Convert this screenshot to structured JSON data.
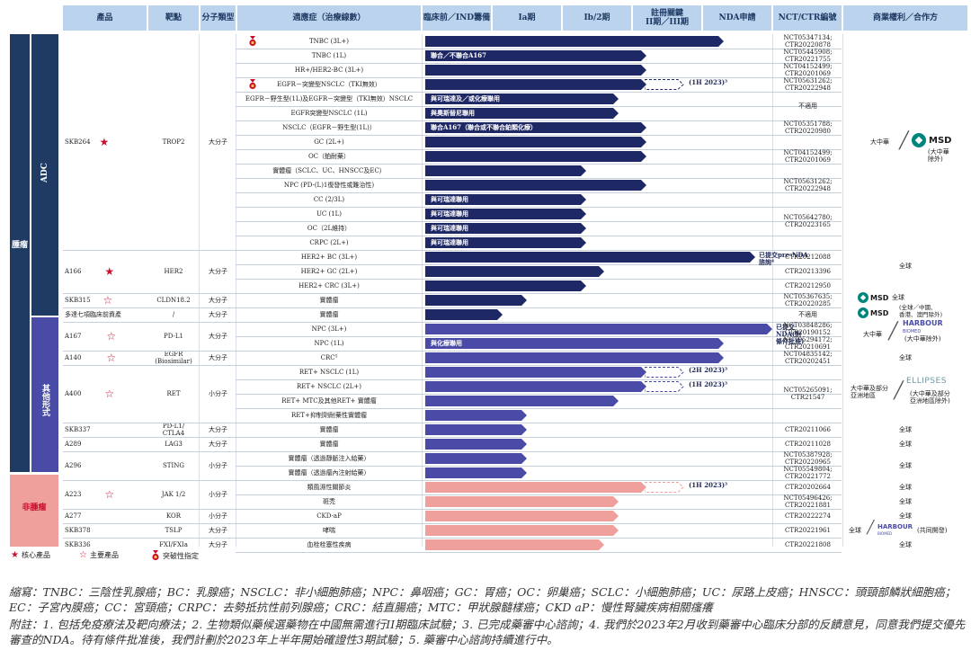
{
  "headers": {
    "product": "產品",
    "target": "靶點",
    "molecule": "分子類型",
    "indication": "適應症（治療線數）",
    "preclin": "臨床前／IND籌備",
    "phase1a": "Ia期",
    "phase1b2": "Ib/2期",
    "pivotal": "註冊關鍵\nII期／III期",
    "nda": "NDA申請",
    "nct": "NCT/CTR編號",
    "commercial": "商業權利／合作方"
  },
  "categories": {
    "oncology": "腫瘤",
    "adc": "ADC",
    "others": "其他形式",
    "non_oncology": "非腫瘤"
  },
  "products": [
    {
      "name": "SKB264",
      "star": "filled",
      "target": "TROP2",
      "molecule": "大分子"
    },
    {
      "name": "A166",
      "star": "filled",
      "target": "HER2",
      "molecule": "大分子"
    },
    {
      "name": "SKB315",
      "star": "outline",
      "target": "CLDN18.2",
      "molecule": "大分子"
    },
    {
      "name": "多達七項臨床前資產",
      "star": "",
      "target": "/",
      "molecule": "大分子"
    },
    {
      "name": "A167",
      "star": "outline",
      "target": "PD-L1",
      "molecule": "大分子"
    },
    {
      "name": "A140",
      "star": "outline",
      "target": "EGFR\n(Biosimilar)",
      "molecule": "大分子"
    },
    {
      "name": "A400",
      "star": "outline",
      "target": "RET",
      "molecule": "小分子"
    },
    {
      "name": "SKB337",
      "star": "",
      "target": "PD-L1/\nCTLA4",
      "molecule": "大分子"
    },
    {
      "name": "A289",
      "star": "",
      "target": "LAG3",
      "molecule": "大分子"
    },
    {
      "name": "A296",
      "star": "",
      "target": "STING",
      "molecule": "小分子"
    },
    {
      "name": "A223",
      "star": "outline",
      "target": "JAK 1/2",
      "molecule": "小分子"
    },
    {
      "name": "A277",
      "star": "",
      "target": "KOR",
      "molecule": "小分子"
    },
    {
      "name": "SKB378",
      "star": "",
      "target": "TSLP",
      "molecule": "大分子"
    },
    {
      "name": "SKB336",
      "star": "",
      "target": "FXI/FXIa",
      "molecule": "大分子"
    }
  ],
  "rows": [
    {
      "indication": "TNBC (3L+)",
      "stage": 0.85,
      "color": "#1e2864",
      "medal": true,
      "label": "",
      "dash": 0,
      "note": ""
    },
    {
      "indication": "TNBC (1L)",
      "stage": 0.63,
      "color": "#1e2864",
      "medal": false,
      "label": "聯合／不聯合A167",
      "dash": 0,
      "note": ""
    },
    {
      "indication": "HR+/HER2-BC (3L+)",
      "stage": 0.63,
      "color": "#1e2864",
      "medal": false,
      "label": "",
      "dash": 0,
      "note": ""
    },
    {
      "indication": "EGFR－突變型NSCLC（TKI無效）",
      "stage": 0.63,
      "color": "#1e2864",
      "medal": true,
      "label": "",
      "dash": 0.73,
      "note": "(1H 2023)³"
    },
    {
      "indication": "EGFR－野生型(1L)及EGFR－突變型（TKI無效）NSCLC",
      "stage": 0.55,
      "color": "#1e2864",
      "medal": false,
      "label": "與可瑞達及／或化療聯用",
      "dash": 0,
      "note": ""
    },
    {
      "indication": "EGFR突變型NSCLC (1L)",
      "stage": 0.55,
      "color": "#1e2864",
      "medal": false,
      "label": "與奧斯替尼聯用",
      "dash": 0,
      "note": ""
    },
    {
      "indication": "NSCLC（EGFR－野生型(1L)）",
      "stage": 0.63,
      "color": "#1e2864",
      "medal": false,
      "label": "聯合A167（聯合或不聯合鉑類化療）",
      "dash": 0,
      "note": ""
    },
    {
      "indication": "GC (2L+)",
      "stage": 0.63,
      "color": "#1e2864",
      "medal": false,
      "label": "",
      "dash": 0,
      "note": ""
    },
    {
      "indication": "OC（鉑耐藥）",
      "stage": 0.63,
      "color": "#1e2864",
      "medal": false,
      "label": "",
      "dash": 0,
      "note": ""
    },
    {
      "indication": "實體瘤（SCLC、UC、HNSCC及EC）",
      "stage": 0.46,
      "color": "#1e2864",
      "medal": false,
      "label": "",
      "dash": 0,
      "note": ""
    },
    {
      "indication": "NPC (PD-(L)1復發性或難治性)",
      "stage": 0.63,
      "color": "#1e2864",
      "medal": false,
      "label": "",
      "dash": 0,
      "note": ""
    },
    {
      "indication": "CC (2/3L)",
      "stage": 0.46,
      "color": "#1e2864",
      "medal": false,
      "label": "與可瑞達聯用",
      "dash": 0,
      "note": ""
    },
    {
      "indication": "UC (1L)",
      "stage": 0.46,
      "color": "#1e2864",
      "medal": false,
      "label": "與可瑞達聯用",
      "dash": 0,
      "note": ""
    },
    {
      "indication": "OC（2L維持）",
      "stage": 0.46,
      "color": "#1e2864",
      "medal": false,
      "label": "與可瑞達聯用",
      "dash": 0,
      "note": ""
    },
    {
      "indication": "CRPC (2L+)",
      "stage": 0.46,
      "color": "#1e2864",
      "medal": false,
      "label": "與可瑞達聯用",
      "dash": 0,
      "note": ""
    },
    {
      "indication": "HER2+ BC (3L+)",
      "stage": 0.94,
      "color": "#1e2864",
      "medal": false,
      "label": "",
      "dash": 0,
      "note": "已提交pre-NDA\n諮詢⁴"
    },
    {
      "indication": "HER2+ GC (2L+)",
      "stage": 0.51,
      "color": "#1e2864",
      "medal": false,
      "label": "",
      "dash": 0,
      "note": ""
    },
    {
      "indication": "HER2+ CRC (3L+)",
      "stage": 0.46,
      "color": "#1e2864",
      "medal": false,
      "label": "",
      "dash": 0,
      "note": ""
    },
    {
      "indication": "實體瘤",
      "stage": 0.29,
      "color": "#1e2864",
      "medal": false,
      "label": "",
      "dash": 0,
      "note": ""
    },
    {
      "indication": "實體瘤",
      "stage": 0.22,
      "color": "#1e2864",
      "medal": false,
      "label": "",
      "dash": 0,
      "note": ""
    },
    {
      "indication": "NPC (3L+)",
      "stage": 0.99,
      "color": "#4a4ba6",
      "medal": false,
      "label": "",
      "dash": 0,
      "note": "已提交\nNDA(附\n條件批准)"
    },
    {
      "indication": "NPC (1L)",
      "stage": 0.85,
      "color": "#4a4ba6",
      "medal": false,
      "label": "與化療聯用",
      "dash": 0,
      "note": ""
    },
    {
      "indication": "CRC⁵",
      "stage": 0.85,
      "color": "#4a4ba6",
      "medal": false,
      "label": "",
      "dash": 0,
      "note": ""
    },
    {
      "indication": "RET+ NSCLC (1L)",
      "stage": 0.63,
      "color": "#4a4ba6",
      "medal": false,
      "label": "",
      "dash": 0.73,
      "note": "(2H 2023)³"
    },
    {
      "indication": "RET+ NSCLC (2L+)",
      "stage": 0.63,
      "color": "#4a4ba6",
      "medal": false,
      "label": "",
      "dash": 0.73,
      "note": "(1H 2023)³"
    },
    {
      "indication": "RET+ MTC及其他RET+ 實體瘤",
      "stage": 0.55,
      "color": "#4a4ba6",
      "medal": false,
      "label": "",
      "dash": 0,
      "note": ""
    },
    {
      "indication": "RET+抑制劑耐藥性實體瘤",
      "stage": 0.29,
      "color": "#4a4ba6",
      "medal": false,
      "label": "",
      "dash": 0,
      "note": ""
    },
    {
      "indication": "實體瘤",
      "stage": 0.29,
      "color": "#4a4ba6",
      "medal": false,
      "label": "",
      "dash": 0,
      "note": ""
    },
    {
      "indication": "實體瘤",
      "stage": 0.29,
      "color": "#4a4ba6",
      "medal": false,
      "label": "",
      "dash": 0,
      "note": ""
    },
    {
      "indication": "實體瘤（透過靜脈注入給藥）",
      "stage": 0.29,
      "color": "#4a4ba6",
      "medal": false,
      "label": "",
      "dash": 0,
      "note": ""
    },
    {
      "indication": "實體瘤（透過瘤內注射給藥）",
      "stage": 0.29,
      "color": "#4a4ba6",
      "medal": false,
      "label": "",
      "dash": 0,
      "note": ""
    },
    {
      "indication": "類風濕性關節炎",
      "stage": 0.63,
      "color": "#f0a09c",
      "medal": false,
      "label": "",
      "dash": 0.73,
      "note": "(1H 2023)³"
    },
    {
      "indication": "斑禿",
      "stage": 0.55,
      "color": "#f0a09c",
      "medal": false,
      "label": "",
      "dash": 0,
      "note": ""
    },
    {
      "indication": "CKD-aP",
      "stage": 0.55,
      "color": "#f0a09c",
      "medal": false,
      "label": "",
      "dash": 0,
      "note": ""
    },
    {
      "indication": "哮喘",
      "stage": 0.55,
      "color": "#f0a09c",
      "medal": false,
      "label": "",
      "dash": 0,
      "note": ""
    },
    {
      "indication": "血栓栓塞性疾病",
      "stage": 0.51,
      "color": "#f0a09c",
      "medal": false,
      "label": "",
      "dash": 0,
      "note": ""
    }
  ],
  "nct": [
    "NCT05347134;\nCTR20220878",
    "NCT05445908;\nCTR20221755",
    "NCT04152499;\nCTR20201069",
    "NCT05631262;\nCTR20222948",
    "不適用",
    "NCT05351788;\nCTR20220980",
    "NCT04152499;\nCTR20201069",
    "NCT05631262;\nCTR20222948",
    "NCT05642780;\nCTR20223165",
    "CTR20212088",
    "CTR20213396",
    "CTR20212950",
    "NCT05367635;\nCTR20220285",
    "不適用",
    "NCT03848286;\nCTR20190152",
    "NCT05294172;\nCTR20210691",
    "NCT04835142;\nCTR20202451",
    "NCT05265091;\nCTR21547",
    "CTR20211066",
    "CTR20211028",
    "NCT05387928;\nCTR20220965",
    "NCT05549804;\nCTR20221772",
    "CTR20202664",
    "NCT05496426;\nCTR20221881",
    "CTR20222274",
    "CTR20221961",
    "CTR20221808"
  ],
  "rights": {
    "skb264_region": "大中華",
    "msd_name": "MSD",
    "msd_scope": "(大中華\n除外)",
    "global": "全球",
    "skb315_prefix": "全球",
    "skb315_scope": "(全球／中國、\n香港、澳門除外)",
    "a167_region": "大中華",
    "harbour_name": "HARBOUR",
    "harbour_sub": "BIOMED",
    "a167_scope": "(大中華除外)",
    "a400_region": "大中華及部分\n亞洲地區",
    "ellipses_name": "ELLIPSES",
    "a400_scope": "(大中華及部分\n亞洲地區除外)",
    "skb378_prefix": "全球",
    "skb378_scope": "(共同開發)"
  },
  "legend": {
    "core": "核心產品",
    "key": "主要產品",
    "btd": "突破性指定"
  },
  "footer": {
    "abbrev": "縮寫：TNBC：三陰性乳腺癌；BC：乳腺癌；NSCLC：非小細胞肺癌；NPC：鼻咽癌；GC：胃癌；OC：卵巢癌；SCLC：小細胞肺癌；UC：尿路上皮癌；HNSCC：頭頸部鱗狀細胞癌；EC：子宮內膜癌；CC：宮頸癌；CRPC：去勢抵抗性前列腺癌；CRC：結直腸癌；MTC：甲狀腺髓樣癌；CKD aP：慢性腎臟疾病相關瘙癢",
    "notes": "附註：1. 包括免疫療法及靶向療法；2. 生物類似藥候選藥物在中國無需進行II期臨床試驗；3. 已完成藥審中心諮詢；4. 我們於2023年2月收到藥審中心臨床分部的反饋意見，同意我們提交優先審查的NDA。待有條件批准後，我們計劃於2023年上半年開始確證性3期試驗；5. 藥審中心諮詢持續進行中。"
  },
  "colors": {
    "header_bg": "#bcd3ee",
    "adc_bar": "#1e2864",
    "other_bar": "#4a4ba6",
    "non_onc_bar": "#f0a09c",
    "star": "#c8102e"
  }
}
